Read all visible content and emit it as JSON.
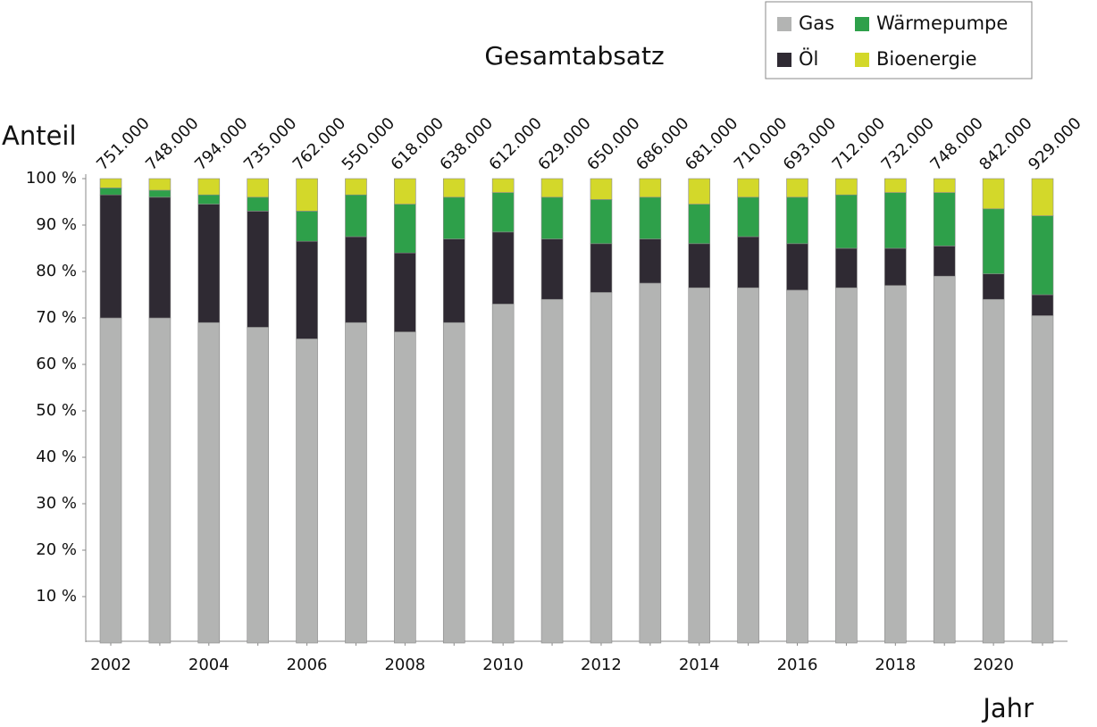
{
  "chart_data": {
    "type": "stacked_bar",
    "title": "Gesamtabsatz",
    "ylabel": "Anteil",
    "xlabel": "Jahr",
    "categories": [
      "2002",
      null,
      "2004",
      null,
      "2006",
      null,
      "2008",
      null,
      "2010",
      null,
      "2012",
      null,
      "2014",
      null,
      "2016",
      null,
      "2018",
      null,
      "2020",
      null
    ],
    "series": [
      {
        "name": "Gas",
        "color": "#b3b4b3",
        "values": [
          70,
          70,
          69,
          68,
          65.5,
          69,
          67,
          69,
          73,
          74,
          75.5,
          77.5,
          76.5,
          76.5,
          76,
          76.5,
          77,
          79,
          74,
          70.5
        ]
      },
      {
        "name": "Öl",
        "color": "#2f2a33",
        "values": [
          26.5,
          26,
          25.5,
          25,
          21,
          18.5,
          17,
          18,
          15.5,
          13,
          10.5,
          9.5,
          9.5,
          11,
          10,
          8.5,
          8,
          6.5,
          5.5,
          4.5
        ]
      },
      {
        "name": "Wärmepumpe",
        "color": "#2ea04a",
        "values": [
          1.5,
          1.5,
          2,
          3,
          6.5,
          9,
          10.5,
          9,
          8.5,
          9,
          9.5,
          9,
          8.5,
          8.5,
          10,
          11.5,
          12,
          11.5,
          14,
          17
        ]
      },
      {
        "name": "Bioenergie",
        "color": "#d3d82a",
        "values": [
          2,
          2.5,
          3.5,
          4,
          7,
          3.5,
          5.5,
          4,
          3,
          4,
          4.5,
          4,
          5.5,
          4,
          4,
          3.5,
          3,
          3,
          6.5,
          8
        ]
      }
    ],
    "totals": {
      "values": [
        751000,
        748000,
        794000,
        735000,
        762000,
        550000,
        618000,
        638000,
        612000,
        629000,
        650000,
        686000,
        681000,
        710000,
        693000,
        712000,
        732000,
        748000,
        842000,
        929000
      ],
      "value_labels": [
        "751.000",
        "748.000",
        "794.000",
        "735.000",
        "762.000",
        "550.000",
        "618.000",
        "638.000",
        "612.000",
        "629.000",
        "650.000",
        "686.000",
        "681.000",
        "710.000",
        "693.000",
        "712.000",
        "732.000",
        "748.000",
        "842.000",
        "929.000"
      ]
    },
    "ylim": [
      0,
      100
    ],
    "yticks": [
      {
        "value": 10,
        "label": "10 %"
      },
      {
        "value": 20,
        "label": "20 %"
      },
      {
        "value": 30,
        "label": "30 %"
      },
      {
        "value": 40,
        "label": "40 %"
      },
      {
        "value": 50,
        "label": "50 %"
      },
      {
        "value": 60,
        "label": "60 %"
      },
      {
        "value": 70,
        "label": "70 %"
      },
      {
        "value": 80,
        "label": "80 %"
      },
      {
        "value": 90,
        "label": "90 %"
      },
      {
        "value": 100,
        "label": "100 %"
      }
    ],
    "grid": false,
    "legend": "top-right"
  }
}
